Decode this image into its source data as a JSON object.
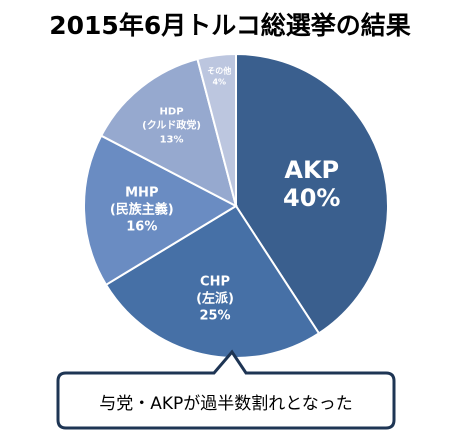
{
  "chart_data": {
    "type": "pie",
    "title": "2015年6月トルコ総選挙の結果",
    "slices": [
      {
        "name": "AKP",
        "sublabel": "",
        "value": 40,
        "value_label": "40%",
        "color": "#3a5f8e",
        "label_color": "#ffffff"
      },
      {
        "name": "CHP",
        "sublabel": "(左派)",
        "value": 25,
        "value_label": "25%",
        "color": "#4670a6",
        "label_color": "#ffffff"
      },
      {
        "name": "MHP",
        "sublabel": "(民族主義)",
        "value": 16,
        "value_label": "16%",
        "color": "#6a8cc2",
        "label_color": "#ffffff"
      },
      {
        "name": "HDP",
        "sublabel": "(クルド政党)",
        "value": 13,
        "value_label": "13%",
        "color": "#96a9cf",
        "label_color": "#ffffff"
      },
      {
        "name": "その他",
        "sublabel": "",
        "value": 4,
        "value_label": "4%",
        "color": "#bcc6df",
        "label_color": "#ffffff"
      }
    ],
    "start_angle_deg": 0,
    "direction": "clockwise",
    "legend": "none"
  },
  "callout": {
    "text": "与党・AKPが過半数割れとなった"
  }
}
